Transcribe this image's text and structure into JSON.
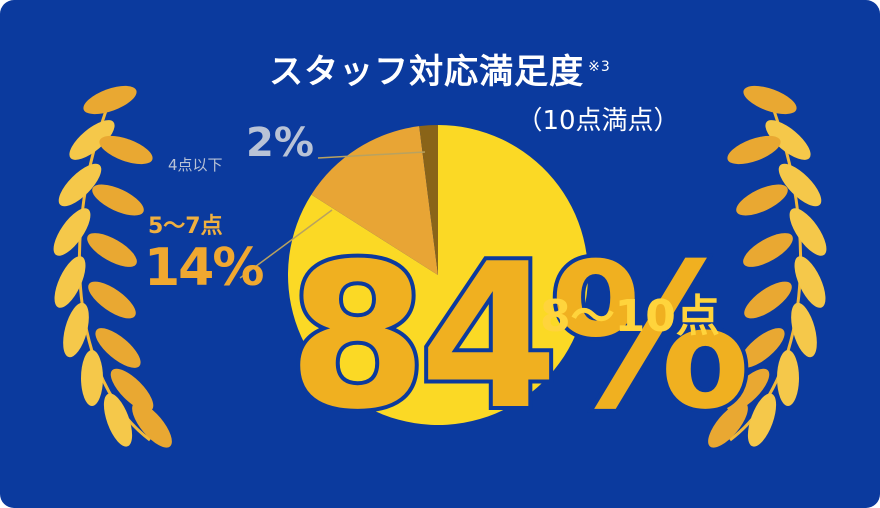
{
  "title": "スタッフ対応満足度",
  "title_note": "※3",
  "subtitle": "（10点満点）",
  "chart_data": {
    "type": "pie",
    "title": "スタッフ対応満足度",
    "subtitle": "（10点満点）",
    "slices": [
      {
        "label": "8〜10点",
        "value": 84,
        "display": "84%",
        "color": "#fbd925"
      },
      {
        "label": "5〜7点",
        "value": 14,
        "display": "14%",
        "color": "#e8a535"
      },
      {
        "label": "4点以下",
        "value": 2,
        "display": "2%",
        "color": "#8a6418"
      }
    ]
  },
  "colors": {
    "background": "#0b3a9e",
    "wreath": "#f2b93a"
  }
}
